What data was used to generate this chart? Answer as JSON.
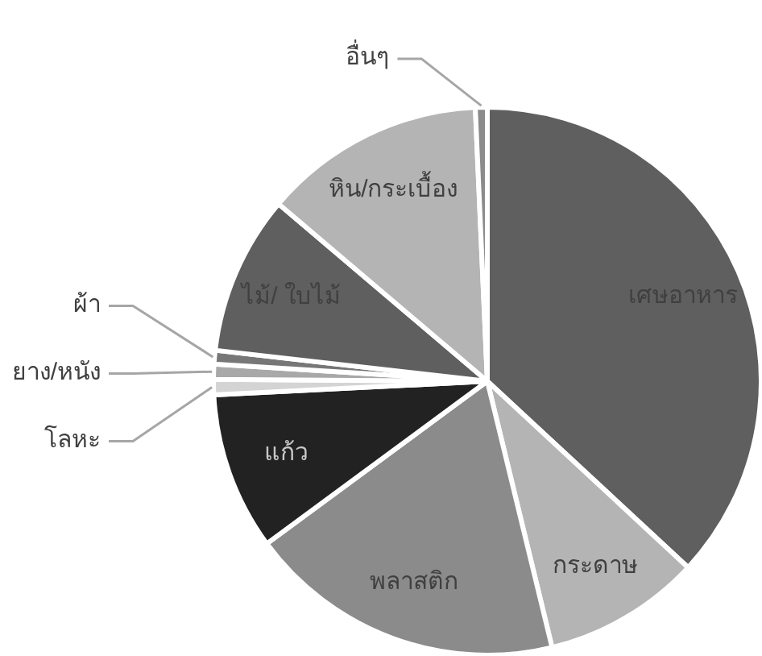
{
  "chart_data": {
    "type": "pie",
    "categories": [
      "เศษอาหาร",
      "กระดาษ",
      "พลาสติก",
      "แก้ว",
      "โลหะ",
      "ยาง/หนัง",
      "ผ้า",
      "ไม้/ ใบไม้",
      "หิน/กระเบื้อง",
      "อื่นๆ"
    ],
    "values": [
      36.9,
      9.3,
      18.7,
      9.3,
      0.9,
      0.9,
      0.8,
      9.4,
      13.1,
      0.7
    ],
    "colors": [
      "#5f5f5f",
      "#b4b4b4",
      "#8b8b8b",
      "#222222",
      "#d4d4d4",
      "#a8a8a8",
      "#777777",
      "#5f5f5f",
      "#b4b4b4",
      "#8b8b8b"
    ]
  }
}
